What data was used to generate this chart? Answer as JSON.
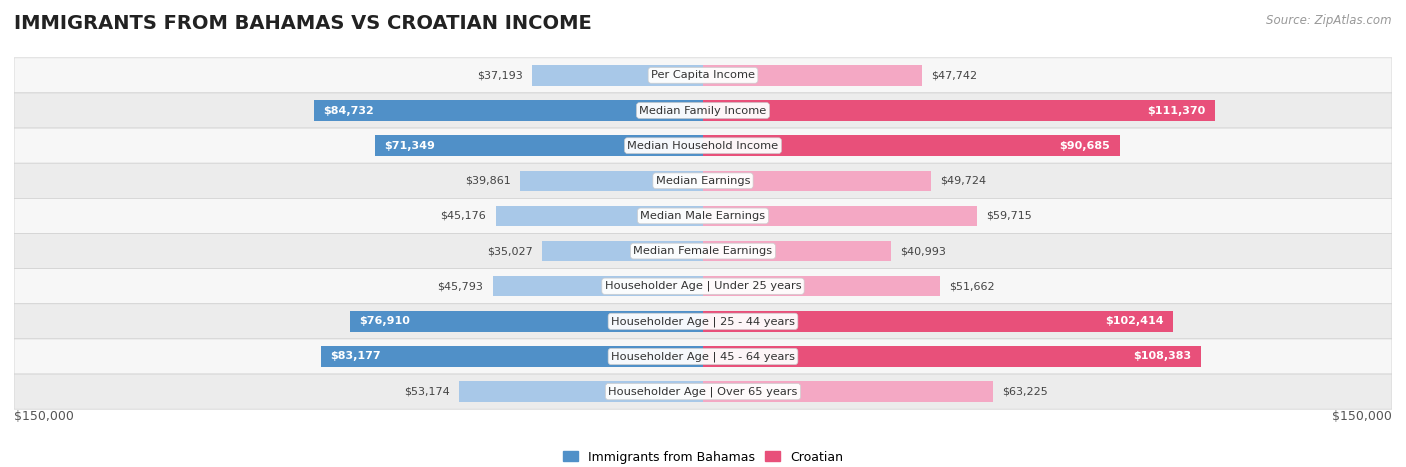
{
  "title": "IMMIGRANTS FROM BAHAMAS VS CROATIAN INCOME",
  "source": "Source: ZipAtlas.com",
  "categories": [
    "Per Capita Income",
    "Median Family Income",
    "Median Household Income",
    "Median Earnings",
    "Median Male Earnings",
    "Median Female Earnings",
    "Householder Age | Under 25 years",
    "Householder Age | 25 - 44 years",
    "Householder Age | 45 - 64 years",
    "Householder Age | Over 65 years"
  ],
  "bahamas_values": [
    37193,
    84732,
    71349,
    39861,
    45176,
    35027,
    45793,
    76910,
    83177,
    53174
  ],
  "croatian_values": [
    47742,
    111370,
    90685,
    49724,
    59715,
    40993,
    51662,
    102414,
    108383,
    63225
  ],
  "bahamas_color_light": "#a8c8e8",
  "bahamas_color_dark": "#5090c8",
  "croatian_color_light": "#f4a8c4",
  "croatian_color_dark": "#e8507a",
  "max_value": 150000,
  "legend_bahamas": "Immigrants from Bahamas",
  "legend_croatian": "Croatian",
  "xlabel_left": "$150,000",
  "xlabel_right": "$150,000",
  "title_fontsize": 14,
  "bar_height": 0.58,
  "row_bg_colors": [
    "#f7f7f7",
    "#ececec"
  ],
  "dark_threshold_bahamas": 65000,
  "dark_threshold_croatian": 85000
}
